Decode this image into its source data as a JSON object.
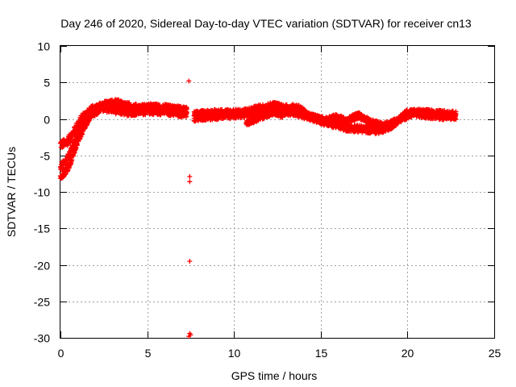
{
  "chart_data": {
    "type": "scatter",
    "title": "Day 246 of 2020, Sidereal Day-to-day VTEC variation (SDTVAR) for receiver cn13",
    "xlabel": "GPS time / hours",
    "ylabel": "SDTVAR / TECUs",
    "xlim": [
      0,
      25
    ],
    "ylim": [
      -30,
      10
    ],
    "xticks": [
      0,
      5,
      10,
      15,
      20,
      25
    ],
    "yticks": [
      10,
      5,
      0,
      -5,
      -10,
      -15,
      -20,
      -25,
      -30
    ],
    "grid": true,
    "marker": "+",
    "marker_color": "#ff0000",
    "series": [
      {
        "name": "SDTVAR",
        "bands": [
          {
            "points": [
              [
                0,
                -3.5
              ],
              [
                0.3,
                -3.3
              ],
              [
                0.6,
                -2.5
              ],
              [
                0.9,
                -1.2
              ],
              [
                1.3,
                0.3
              ],
              [
                1.8,
                1.2
              ],
              [
                2.3,
                1.5
              ],
              [
                2.8,
                1.5
              ],
              [
                3.3,
                1.2
              ],
              [
                3.8,
                1.0
              ],
              [
                4.5,
                1.1
              ],
              [
                5.2,
                1.2
              ],
              [
                6.0,
                1.1
              ],
              [
                6.8,
                0.9
              ],
              [
                7.3,
                0.7
              ]
            ],
            "spread": 0.6
          },
          {
            "points": [
              [
                0,
                -6.5
              ],
              [
                0.3,
                -6.0
              ],
              [
                0.6,
                -4.5
              ],
              [
                0.9,
                -2.5
              ],
              [
                1.3,
                -0.5
              ],
              [
                1.8,
                1.0
              ],
              [
                2.3,
                1.8
              ],
              [
                2.8,
                2.1
              ],
              [
                3.3,
                2.2
              ],
              [
                3.8,
                1.8
              ],
              [
                4.5,
                1.5
              ],
              [
                5.2,
                1.6
              ],
              [
                6.0,
                1.5
              ],
              [
                6.8,
                1.3
              ],
              [
                7.3,
                1.1
              ]
            ],
            "spread": 0.5
          },
          {
            "points": [
              [
                0,
                -8.0
              ],
              [
                0.2,
                -7.5
              ],
              [
                0.5,
                -6.5
              ],
              [
                0.7,
                -5.2
              ],
              [
                1.0,
                -3.0
              ],
              [
                1.4,
                -1.0
              ],
              [
                1.8,
                0.5
              ],
              [
                2.2,
                1.2
              ]
            ],
            "spread": 0.4
          },
          {
            "points": [
              [
                7.7,
                0.1
              ],
              [
                8.5,
                0.3
              ],
              [
                9.5,
                0.5
              ],
              [
                10.5,
                0.6
              ],
              [
                11.5,
                0.8
              ],
              [
                12.5,
                1.1
              ],
              [
                13.5,
                0.9
              ],
              [
                14.5,
                0.2
              ],
              [
                15.2,
                -0.4
              ],
              [
                15.9,
                -0.8
              ],
              [
                16.5,
                -1.2
              ],
              [
                17.5,
                -1.4
              ],
              [
                18.3,
                -1.6
              ],
              [
                19.0,
                -1.0
              ],
              [
                19.7,
                0.2
              ],
              [
                20.3,
                0.8
              ],
              [
                21.0,
                0.6
              ],
              [
                22.0,
                0.4
              ],
              [
                22.8,
                0.3
              ]
            ],
            "spread": 0.5
          },
          {
            "points": [
              [
                7.7,
                0.6
              ],
              [
                8.5,
                0.8
              ],
              [
                9.5,
                0.9
              ],
              [
                10.5,
                0.9
              ],
              [
                11.5,
                1.5
              ],
              [
                12.3,
                1.9
              ],
              [
                13.0,
                1.5
              ],
              [
                13.7,
                1.6
              ],
              [
                14.3,
                0.4
              ],
              [
                15.2,
                -0.2
              ],
              [
                15.9,
                0.2
              ],
              [
                16.5,
                -0.3
              ],
              [
                17.2,
                0.5
              ],
              [
                17.8,
                -0.4
              ],
              [
                18.6,
                -1.0
              ],
              [
                19.3,
                -0.4
              ],
              [
                20.0,
                0.9
              ],
              [
                20.8,
                0.9
              ],
              [
                21.5,
                0.8
              ],
              [
                22.2,
                0.7
              ],
              [
                22.8,
                0.6
              ]
            ],
            "spread": 0.45
          },
          {
            "points": [
              [
                10.7,
                -0.6
              ],
              [
                11.2,
                -0.2
              ],
              [
                11.8,
                0.5
              ],
              [
                12.3,
                0.9
              ],
              [
                12.8,
                0.4
              ]
            ],
            "spread": 0.35
          }
        ],
        "outliers": [
          [
            7.4,
            5.2
          ],
          [
            7.45,
            -7.9
          ],
          [
            7.45,
            -8.6
          ],
          [
            7.45,
            -19.5
          ],
          [
            7.45,
            -29.4
          ],
          [
            7.5,
            -29.6
          ],
          [
            7.4,
            -29.8
          ]
        ]
      }
    ]
  }
}
